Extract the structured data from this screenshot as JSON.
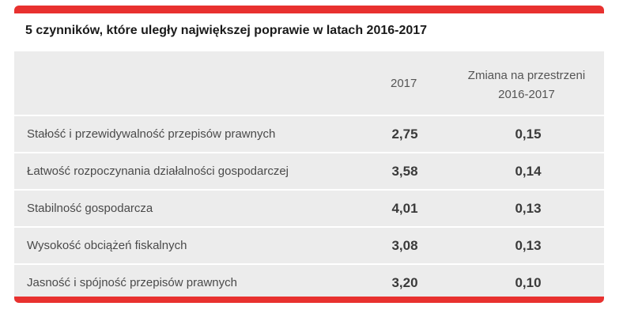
{
  "title": "5 czynników, które uległy największej poprawie w latach 2016-2017",
  "colors": {
    "accent": "#e8312f",
    "row_background": "#ececec"
  },
  "table": {
    "headers": {
      "factor": "",
      "year": "2017",
      "change_line1": "Zmiana na przestrzeni",
      "change_line2": "2016-2017"
    },
    "rows": [
      {
        "factor": "Stałość i przewidywalność przepisów prawnych",
        "value_2017": "2,75",
        "change": "0,15"
      },
      {
        "factor": "Łatwość rozpoczynania działalności gospodarczej",
        "value_2017": "3,58",
        "change": "0,14"
      },
      {
        "factor": "Stabilność gospodarcza",
        "value_2017": "4,01",
        "change": "0,13"
      },
      {
        "factor": "Wysokość obciążeń fiskalnych",
        "value_2017": "3,08",
        "change": "0,13"
      },
      {
        "factor": "Jasność i spójność przepisów prawnych",
        "value_2017": "3,20",
        "change": "0,10"
      }
    ]
  }
}
